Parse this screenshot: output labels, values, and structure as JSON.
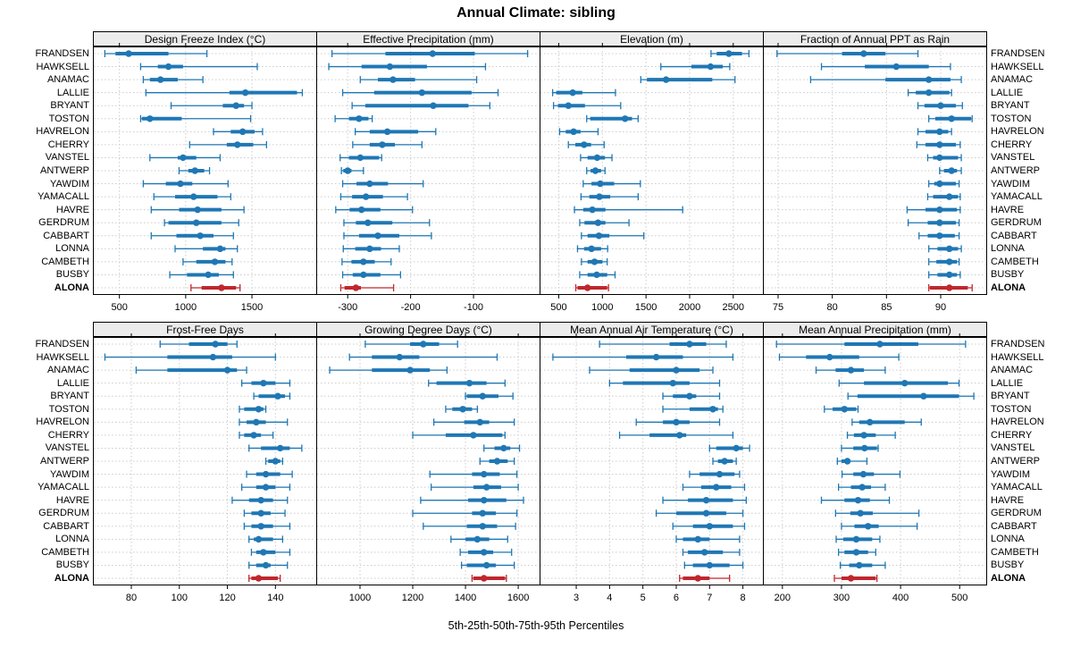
{
  "title": "Annual Climate: sibling",
  "caption": "5th-25th-50th-75th-95th Percentiles",
  "chart_data": {
    "type": "dot-whisker-trellis",
    "description": "Horizontal 5th-25th-50th-75th-95th percentile whisker plots per station, 2x4 panel grid",
    "percentiles": [
      5,
      25,
      50,
      75,
      95
    ],
    "stations": [
      "FRANDSEN",
      "HAWKSELL",
      "ANAMAC",
      "LALLIE",
      "BRYANT",
      "TOSTON",
      "HAVRELON",
      "CHERRY",
      "VANSTEL",
      "ANTWERP",
      "YAWDIM",
      "YAMACALL",
      "HAVRE",
      "GERDRUM",
      "CABBART",
      "LONNA",
      "CAMBETH",
      "BUSBY",
      "ALONA"
    ],
    "highlight_station": "ALONA",
    "colors": {
      "series": "#1f77b4",
      "highlight": "#c0272d",
      "grid": "#cccccc",
      "strip_bg": "#ececec",
      "border": "#000000"
    },
    "panels": [
      {
        "title": "Design Freeze Index (°C)",
        "xlim": [
          300,
          1985
        ],
        "ticks": [
          500,
          1000,
          1500
        ],
        "values": [
          [
            390,
            470,
            570,
            870,
            1160
          ],
          [
            660,
            790,
            870,
            980,
            1540
          ],
          [
            680,
            730,
            810,
            940,
            1130
          ],
          [
            700,
            1330,
            1450,
            1840,
            1880
          ],
          [
            890,
            1280,
            1380,
            1440,
            1500
          ],
          [
            660,
            670,
            730,
            970,
            1490
          ],
          [
            1210,
            1340,
            1430,
            1520,
            1580
          ],
          [
            1030,
            1310,
            1390,
            1510,
            1610
          ],
          [
            730,
            940,
            980,
            1080,
            1260
          ],
          [
            950,
            1020,
            1070,
            1140,
            1180
          ],
          [
            680,
            850,
            960,
            1050,
            1320
          ],
          [
            760,
            920,
            1060,
            1240,
            1340
          ],
          [
            740,
            950,
            1090,
            1270,
            1440
          ],
          [
            840,
            870,
            1080,
            1270,
            1400
          ],
          [
            740,
            930,
            1110,
            1210,
            1360
          ],
          [
            920,
            1130,
            1260,
            1300,
            1390
          ],
          [
            980,
            1080,
            1220,
            1300,
            1350
          ],
          [
            880,
            1010,
            1170,
            1250,
            1360
          ],
          [
            1040,
            1120,
            1270,
            1380,
            1410
          ]
        ]
      },
      {
        "title": "Effective Precipitation (mm)",
        "xlim": [
          -350,
          5
        ],
        "ticks": [
          -300,
          -200,
          -100
        ],
        "values": [
          [
            -325,
            -240,
            -165,
            -98,
            -14
          ],
          [
            -330,
            -278,
            -233,
            -174,
            -81
          ],
          [
            -280,
            -252,
            -228,
            -193,
            -95
          ],
          [
            -308,
            -258,
            -182,
            -103,
            -61
          ],
          [
            -293,
            -272,
            -164,
            -108,
            -74
          ],
          [
            -320,
            -298,
            -282,
            -267,
            -261
          ],
          [
            -288,
            -265,
            -237,
            -188,
            -160
          ],
          [
            -292,
            -265,
            -245,
            -225,
            -182
          ],
          [
            -312,
            -298,
            -280,
            -250,
            -246
          ],
          [
            -310,
            -307,
            -300,
            -294,
            -275
          ],
          [
            -308,
            -286,
            -265,
            -236,
            -180
          ],
          [
            -311,
            -293,
            -271,
            -244,
            -205
          ],
          [
            -319,
            -297,
            -278,
            -248,
            -197
          ],
          [
            -306,
            -287,
            -268,
            -229,
            -170
          ],
          [
            -306,
            -282,
            -252,
            -218,
            -167
          ],
          [
            -307,
            -288,
            -265,
            -247,
            -218
          ],
          [
            -309,
            -294,
            -275,
            -257,
            -231
          ],
          [
            -308,
            -292,
            -275,
            -248,
            -216
          ],
          [
            -311,
            -305,
            -287,
            -279,
            -227
          ]
        ]
      },
      {
        "title": "Elevation (m)",
        "xlim": [
          280,
          2840
        ],
        "ticks": [
          500,
          1000,
          1500,
          2000,
          2500
        ],
        "values": [
          [
            2245,
            2310,
            2450,
            2600,
            2680
          ],
          [
            1670,
            2020,
            2240,
            2380,
            2460
          ],
          [
            1440,
            1510,
            1730,
            2260,
            2520
          ],
          [
            430,
            470,
            660,
            770,
            1150
          ],
          [
            440,
            490,
            610,
            800,
            1210
          ],
          [
            820,
            860,
            1260,
            1340,
            1410
          ],
          [
            510,
            580,
            670,
            750,
            950
          ],
          [
            610,
            690,
            790,
            870,
            1020
          ],
          [
            750,
            830,
            940,
            1030,
            1110
          ],
          [
            820,
            865,
            920,
            985,
            1030
          ],
          [
            780,
            875,
            975,
            1135,
            1435
          ],
          [
            755,
            850,
            965,
            1090,
            1410
          ],
          [
            680,
            780,
            885,
            1035,
            1920
          ],
          [
            740,
            795,
            950,
            1035,
            1305
          ],
          [
            760,
            830,
            960,
            1080,
            1475
          ],
          [
            715,
            790,
            875,
            985,
            1060
          ],
          [
            760,
            830,
            910,
            1000,
            1055
          ],
          [
            740,
            830,
            935,
            1055,
            1145
          ],
          [
            695,
            715,
            830,
            1055,
            1070
          ]
        ]
      },
      {
        "title": "Fraction of Annual PPT as Rain",
        "xlim": [
          73.6,
          94.2
        ],
        "ticks": [
          75,
          80,
          85,
          90
        ],
        "values": [
          [
            74.9,
            80.9,
            82.9,
            84.9,
            87.9
          ],
          [
            79,
            83,
            85.9,
            88.9,
            90.9
          ],
          [
            78,
            84.9,
            88.9,
            90.9,
            91.9
          ],
          [
            87,
            87.7,
            88.9,
            90.8,
            91
          ],
          [
            87.9,
            88.5,
            90,
            91.4,
            92
          ],
          [
            88.9,
            89.5,
            91,
            92.8,
            92.9
          ],
          [
            87.9,
            88.6,
            89.9,
            90.7,
            91
          ],
          [
            87.8,
            88.6,
            89.9,
            91.4,
            91.8
          ],
          [
            88.8,
            89.3,
            89.9,
            91.6,
            91.9
          ],
          [
            89.9,
            90.3,
            91,
            91.5,
            91.9
          ],
          [
            88.9,
            89.4,
            89.9,
            91.4,
            91.7
          ],
          [
            88.8,
            89.3,
            90.8,
            91.6,
            91.8
          ],
          [
            86.9,
            88.6,
            89.9,
            91.5,
            91.8
          ],
          [
            87,
            88.8,
            89.9,
            91.4,
            91.7
          ],
          [
            88,
            88.8,
            89.9,
            91.3,
            91.7
          ],
          [
            88.9,
            89.7,
            90.8,
            91.6,
            91.9
          ],
          [
            88.9,
            89.6,
            90.8,
            91.5,
            91.7
          ],
          [
            88.9,
            89.7,
            90.8,
            91.5,
            91.8
          ],
          [
            88.9,
            89,
            90.8,
            92.5,
            92.9
          ]
        ]
      },
      {
        "title": "Frost-Free Days",
        "xlim": [
          64,
          157
        ],
        "ticks": [
          80,
          100,
          120,
          140
        ],
        "values": [
          [
            92,
            104,
            115,
            120,
            124
          ],
          [
            69,
            95,
            114,
            122,
            140
          ],
          [
            82,
            95,
            120,
            124,
            128
          ],
          [
            126,
            130,
            135,
            140,
            146
          ],
          [
            131,
            133,
            141,
            144,
            146
          ],
          [
            125,
            127,
            133,
            135,
            136
          ],
          [
            125,
            128,
            132,
            136,
            145
          ],
          [
            125,
            127,
            131,
            134,
            139
          ],
          [
            129,
            134,
            142,
            146,
            151
          ],
          [
            136,
            137,
            140,
            142,
            143
          ],
          [
            128,
            132,
            136,
            142,
            147
          ],
          [
            126,
            132,
            136,
            140,
            146
          ],
          [
            122,
            129,
            134,
            139,
            145
          ],
          [
            127,
            130,
            134,
            138,
            144
          ],
          [
            127,
            130,
            134,
            139,
            146
          ],
          [
            129,
            131,
            133,
            139,
            143
          ],
          [
            130,
            132,
            135,
            140,
            146
          ],
          [
            129,
            132,
            136,
            138,
            145
          ],
          [
            129,
            130,
            133,
            141,
            142
          ]
        ]
      },
      {
        "title": "Growing Degree Days (°C)",
        "xlim": [
          834,
          1681
        ],
        "ticks": [
          1000,
          1200,
          1400,
          1600
        ],
        "values": [
          [
            1020,
            1190,
            1240,
            1300,
            1370
          ],
          [
            960,
            1045,
            1150,
            1225,
            1520
          ],
          [
            885,
            1045,
            1190,
            1265,
            1330
          ],
          [
            1260,
            1290,
            1415,
            1480,
            1550
          ],
          [
            1400,
            1405,
            1465,
            1525,
            1580
          ],
          [
            1325,
            1350,
            1390,
            1425,
            1445
          ],
          [
            1280,
            1395,
            1455,
            1490,
            1585
          ],
          [
            1200,
            1325,
            1430,
            1540,
            1550
          ],
          [
            1470,
            1510,
            1545,
            1570,
            1605
          ],
          [
            1455,
            1490,
            1520,
            1560,
            1585
          ],
          [
            1265,
            1425,
            1470,
            1530,
            1595
          ],
          [
            1270,
            1430,
            1480,
            1535,
            1600
          ],
          [
            1230,
            1410,
            1470,
            1555,
            1620
          ],
          [
            1200,
            1425,
            1465,
            1515,
            1595
          ],
          [
            1240,
            1405,
            1465,
            1520,
            1590
          ],
          [
            1345,
            1400,
            1445,
            1490,
            1560
          ],
          [
            1380,
            1410,
            1470,
            1505,
            1575
          ],
          [
            1385,
            1405,
            1480,
            1515,
            1585
          ],
          [
            1425,
            1430,
            1470,
            1550,
            1555
          ]
        ]
      },
      {
        "title": "Mean Annual Air Temperature (°C)",
        "xlim": [
          1.9,
          8.6
        ],
        "ticks": [
          3,
          4,
          5,
          6,
          7,
          8
        ],
        "values": [
          [
            3.7,
            5.8,
            6.4,
            6.9,
            7.5
          ],
          [
            2.3,
            4.5,
            5.4,
            6.2,
            7.7
          ],
          [
            3.4,
            4.6,
            6,
            6.7,
            7.1
          ],
          [
            4,
            4.4,
            5.9,
            6.4,
            7.3
          ],
          [
            5.6,
            5.9,
            6.4,
            6.6,
            7.3
          ],
          [
            5.6,
            6.4,
            7.1,
            7.25,
            7.4
          ],
          [
            4.8,
            5.6,
            6,
            6.4,
            7.3
          ],
          [
            4.3,
            5.2,
            6.1,
            6.3,
            7.7
          ],
          [
            7,
            7.2,
            7.8,
            8,
            8.2
          ],
          [
            7.1,
            7.25,
            7.45,
            7.7,
            7.8
          ],
          [
            6.4,
            6.7,
            7.3,
            7.75,
            7.9
          ],
          [
            6.2,
            6.75,
            7.2,
            7.65,
            8.05
          ],
          [
            5.6,
            6.35,
            6.9,
            7.7,
            8.1
          ],
          [
            5.4,
            6,
            6.9,
            7.5,
            8
          ],
          [
            5.9,
            6.5,
            7,
            7.7,
            8.05
          ],
          [
            6,
            6.2,
            6.65,
            7,
            7.9
          ],
          [
            6.2,
            6.35,
            6.85,
            7.4,
            7.9
          ],
          [
            6.25,
            6.5,
            7,
            7.6,
            8
          ],
          [
            6.1,
            6.2,
            6.65,
            7,
            7.6
          ]
        ]
      },
      {
        "title": "Mean Annual Precipitation (mm)",
        "xlim": [
          167,
          545
        ],
        "ticks": [
          200,
          300,
          400,
          500
        ],
        "values": [
          [
            190,
            305,
            365,
            430,
            510
          ],
          [
            195,
            240,
            280,
            330,
            397
          ],
          [
            257,
            290,
            316,
            338,
            374
          ],
          [
            296,
            338,
            407,
            480,
            499
          ],
          [
            311,
            327,
            439,
            499,
            524
          ],
          [
            271,
            285,
            305,
            325,
            328
          ],
          [
            318,
            330,
            348,
            407,
            435
          ],
          [
            310,
            321,
            338,
            358,
            391
          ],
          [
            300,
            320,
            339,
            360,
            362
          ],
          [
            293,
            300,
            310,
            313,
            343
          ],
          [
            301,
            320,
            337,
            355,
            399
          ],
          [
            295,
            316,
            335,
            350,
            374
          ],
          [
            266,
            305,
            328,
            348,
            381
          ],
          [
            290,
            315,
            332,
            353,
            431
          ],
          [
            300,
            322,
            345,
            363,
            428
          ],
          [
            291,
            303,
            325,
            352,
            365
          ],
          [
            295,
            305,
            325,
            345,
            358
          ],
          [
            298,
            313,
            330,
            352,
            374
          ],
          [
            288,
            300,
            316,
            358,
            360
          ]
        ]
      }
    ]
  }
}
